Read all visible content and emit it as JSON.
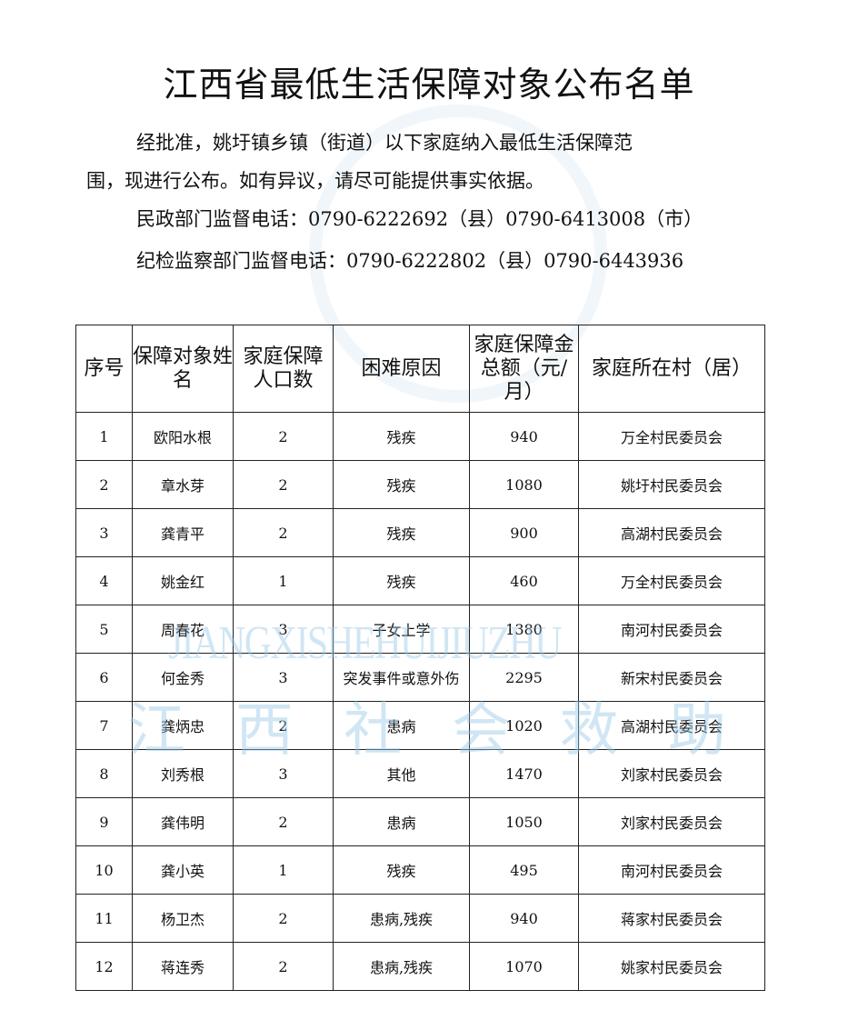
{
  "title": "江西省最低生活保障对象公布名单",
  "intro": {
    "line1": "经批准，姚圩镇乡镇（街道）以下家庭纳入最低生活保障范",
    "line2": "围，现进行公布。如有异议，请尽可能提供事实依据。",
    "civil_phone": "民政部门监督电话：0790-6222692（县）0790-6413008（市）",
    "discipline_phone": "纪检监察部门监督电话：0790-6222802（县）0790-6443936"
  },
  "watermark": {
    "pinyin": "JIANGXISHEHUIJIUZHU",
    "chinese": "江西社会救助"
  },
  "table": {
    "headers": [
      "序号",
      "保障对象姓名",
      "家庭保障人口数",
      "困难原因",
      "家庭保障金总额（元/月）",
      "家庭所在村（居）"
    ],
    "rows": [
      [
        "1",
        "欧阳水根",
        "2",
        "残疾",
        "940",
        "万全村民委员会"
      ],
      [
        "2",
        "章水芽",
        "2",
        "残疾",
        "1080",
        "姚圩村民委员会"
      ],
      [
        "3",
        "龚青平",
        "2",
        "残疾",
        "900",
        "高湖村民委员会"
      ],
      [
        "4",
        "姚金红",
        "1",
        "残疾",
        "460",
        "万全村民委员会"
      ],
      [
        "5",
        "周春花",
        "3",
        "子女上学",
        "1380",
        "南河村民委员会"
      ],
      [
        "6",
        "何金秀",
        "3",
        "突发事件或意外伤",
        "2295",
        "新宋村民委员会"
      ],
      [
        "7",
        "龚炳忠",
        "2",
        "患病",
        "1020",
        "高湖村民委员会"
      ],
      [
        "8",
        "刘秀根",
        "3",
        "其他",
        "1470",
        "刘家村民委员会"
      ],
      [
        "9",
        "龚伟明",
        "2",
        "患病",
        "1050",
        "刘家村民委员会"
      ],
      [
        "10",
        "龚小英",
        "1",
        "残疾",
        "495",
        "南河村民委员会"
      ],
      [
        "11",
        "杨卫杰",
        "2",
        "患病,残疾",
        "940",
        "蒋家村民委员会"
      ],
      [
        "12",
        "蒋连秀",
        "2",
        "患病,残疾",
        "1070",
        "姚家村民委员会"
      ]
    ]
  }
}
